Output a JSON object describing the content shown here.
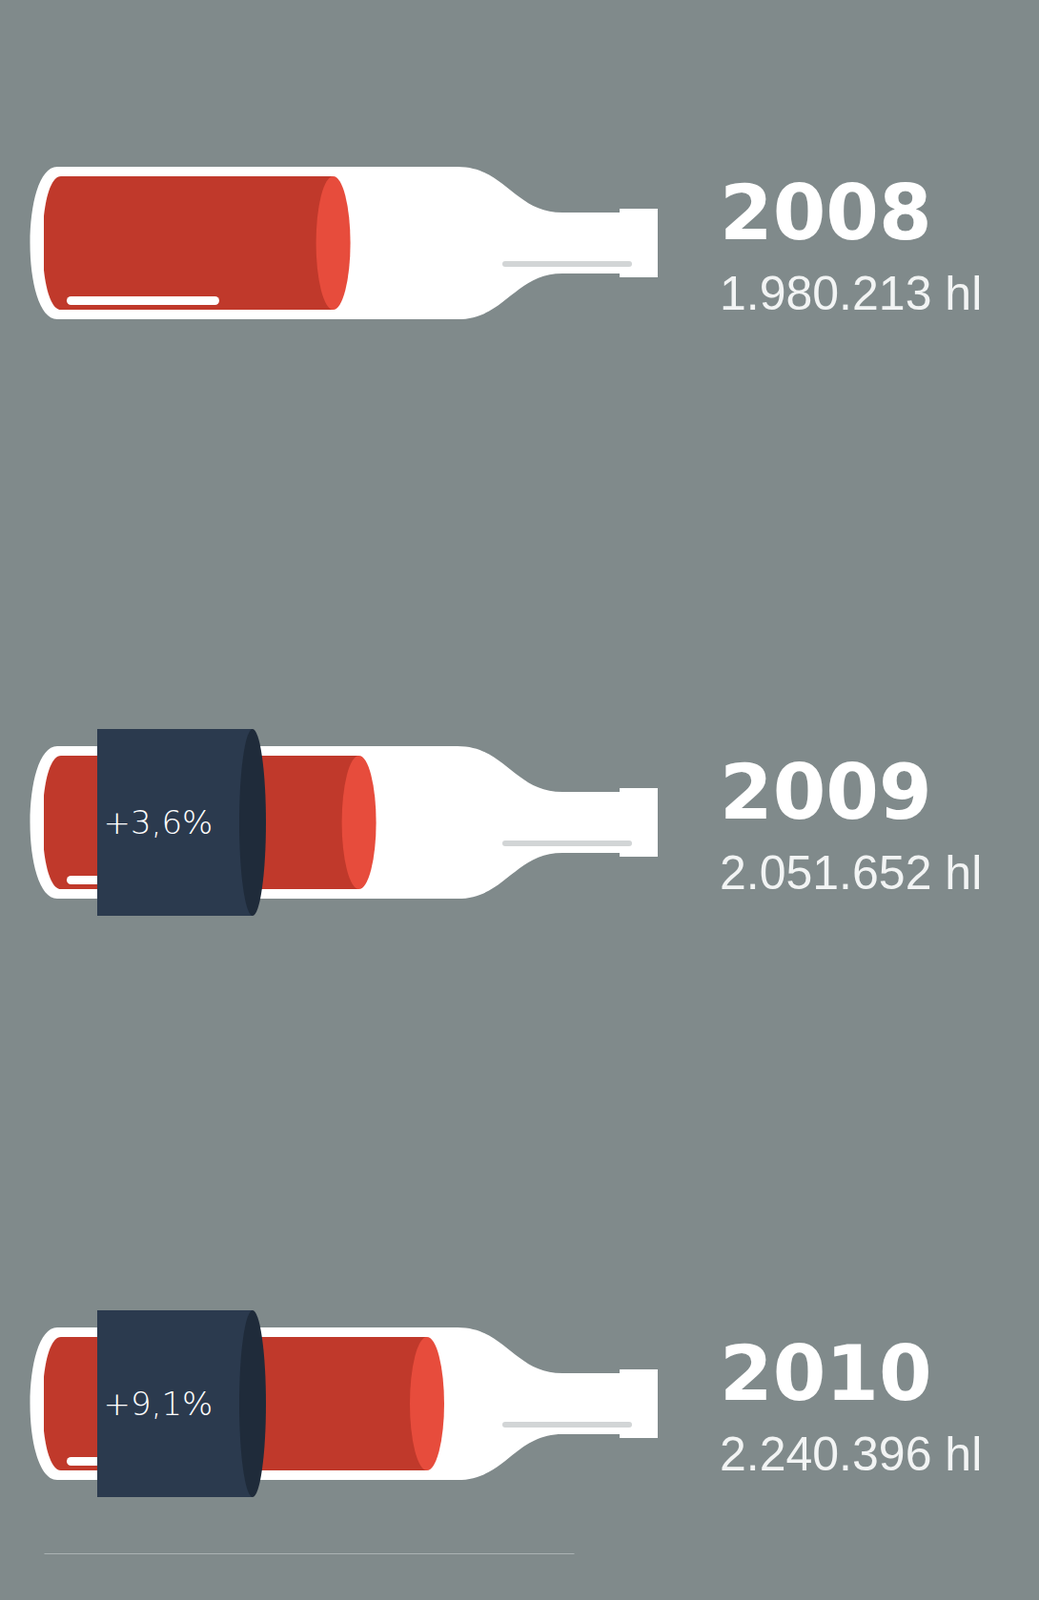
{
  "chart_data": {
    "type": "bar",
    "orientation": "horizontal",
    "categories": [
      "2008",
      "2009",
      "2010"
    ],
    "values": [
      1980213,
      2051652,
      2240396
    ],
    "value_labels": [
      "1.980.213 hl",
      "2.051.652 hl",
      "2.240.396 hl"
    ],
    "data_labels": true,
    "annotations": [
      null,
      "+3,6%",
      "+9,1%"
    ],
    "xlim": [
      1130000,
      2600000
    ],
    "tick_labels": false,
    "color": "#c0392b"
  }
}
